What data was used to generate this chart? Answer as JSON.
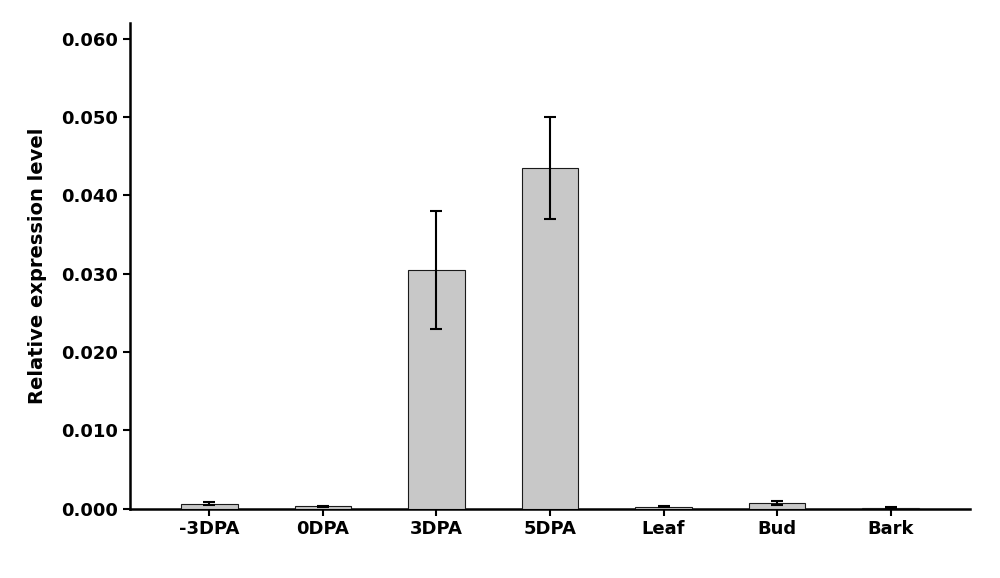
{
  "categories": [
    "-3DPA",
    "0DPA",
    "3DPA",
    "5DPA",
    "Leaf",
    "Bud",
    "Bark"
  ],
  "values": [
    0.00065,
    0.0003,
    0.0305,
    0.0435,
    0.00025,
    0.00075,
    0.0001
  ],
  "errors": [
    0.00015,
    8e-05,
    0.0075,
    0.0065,
    8e-05,
    0.00025,
    5e-05
  ],
  "bar_color": "#c8c8c8",
  "bar_edgecolor": "#1a1a1a",
  "errorbar_color": "#000000",
  "ylabel": "Relative expression level",
  "ylim": [
    0,
    0.062
  ],
  "yticks": [
    0.0,
    0.01,
    0.02,
    0.03,
    0.04,
    0.05,
    0.06
  ],
  "bar_width": 0.5,
  "figsize": [
    10.0,
    5.78
  ],
  "dpi": 100,
  "background_color": "#ffffff",
  "spine_linewidth": 1.8,
  "tick_fontsize": 13,
  "ylabel_fontsize": 14,
  "xlabel_fontsize": 13
}
